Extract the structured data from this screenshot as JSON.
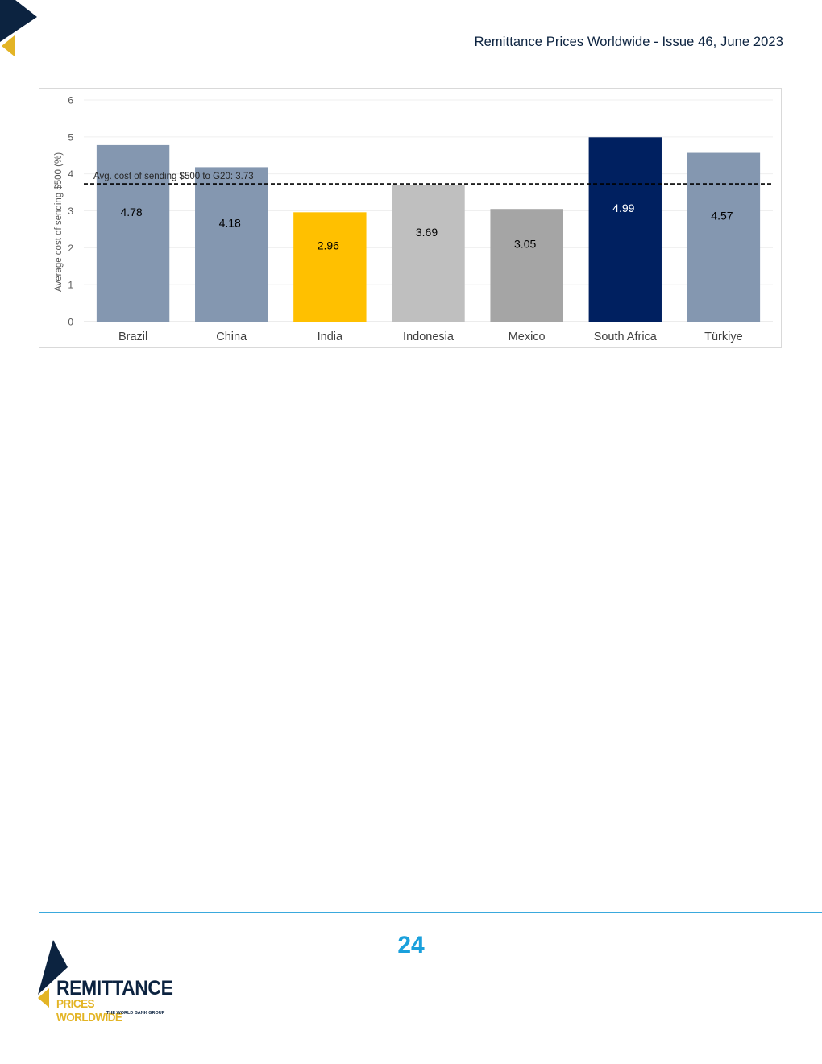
{
  "header": {
    "title": "Remittance Prices Worldwide - Issue 46, June 2023"
  },
  "colors": {
    "navy": "#0c2340",
    "gold": "#e3b425",
    "accent_blue": "#1aa0dc"
  },
  "chart_data": {
    "type": "bar",
    "title": "",
    "xlabel": "",
    "ylabel": "Average cost of sending $500 (%)",
    "ylim": [
      0,
      6
    ],
    "yticks": [
      0,
      1,
      2,
      3,
      4,
      5,
      6
    ],
    "categories": [
      "Brazil",
      "China",
      "India",
      "Indonesia",
      "Mexico",
      "South Africa",
      "Türkiye"
    ],
    "values": [
      4.78,
      4.18,
      2.96,
      3.69,
      3.05,
      4.99,
      4.57
    ],
    "value_labels": [
      "4.78",
      "4.18",
      "2.96",
      "3.69",
      "3.05",
      "4.99",
      "4.57"
    ],
    "bar_colors": [
      "#8497b0",
      "#8497b0",
      "#ffc000",
      "#bfbfbf",
      "#a5a5a5",
      "#002060",
      "#8497b0"
    ],
    "label_colors": [
      "#000000",
      "#000000",
      "#000000",
      "#000000",
      "#000000",
      "#ffffff",
      "#000000"
    ],
    "grid": true,
    "reference_line": {
      "value": 3.73,
      "label": "Avg. cost of sending $500 to G20: 3.73",
      "style": "dashed"
    }
  },
  "footer": {
    "page_number": "24"
  },
  "logo": {
    "line1": "REMITTANCE",
    "line2": "PRICES WORLDWIDE",
    "line3": "THE WORLD BANK GROUP"
  }
}
